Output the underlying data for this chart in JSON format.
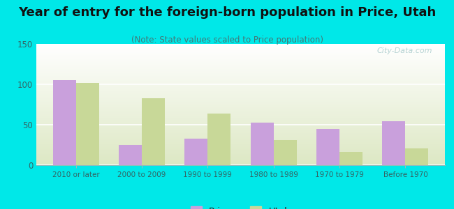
{
  "title": "Year of entry for the foreign-born population in Price, Utah",
  "subtitle": "(Note: State values scaled to Price population)",
  "categories": [
    "2010 or later",
    "2000 to 2009",
    "1990 to 1999",
    "1980 to 1989",
    "1970 to 1979",
    "Before 1970"
  ],
  "price_values": [
    105,
    25,
    33,
    53,
    45,
    54
  ],
  "utah_values": [
    102,
    83,
    64,
    31,
    16,
    21
  ],
  "price_color": "#c9a0dc",
  "utah_color": "#c8d898",
  "background_color": "#00e8e8",
  "ylim": [
    0,
    150
  ],
  "yticks": [
    0,
    50,
    100,
    150
  ],
  "bar_width": 0.35,
  "title_fontsize": 13,
  "subtitle_fontsize": 8.5,
  "legend_labels": [
    "Price",
    "Utah"
  ],
  "watermark": "City-Data.com"
}
